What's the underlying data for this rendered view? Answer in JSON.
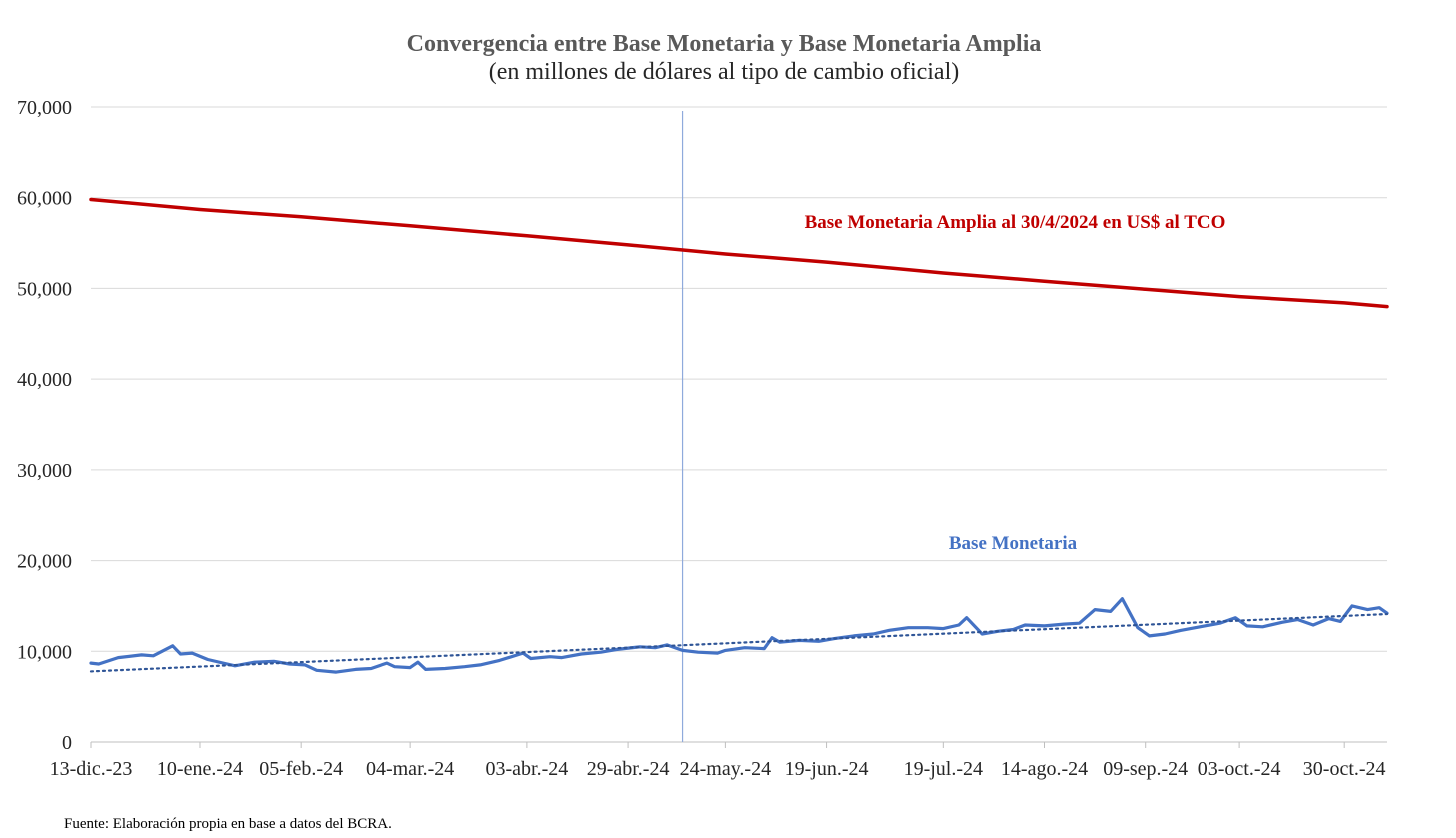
{
  "chart_data": {
    "type": "line",
    "title": "Convergencia entre Base Monetaria y Base Monetaria Amplia",
    "subtitle": "(en millones de dólares al tipo de cambio oficial)",
    "source": "Fuente: Elaboración propia en base a datos del BCRA.",
    "xlabel": "",
    "ylabel": "",
    "ylim": [
      0,
      70000
    ],
    "yticks": [
      "0",
      "10,000",
      "20,000",
      "30,000",
      "40,000",
      "50,000",
      "60,000",
      "70,000"
    ],
    "x_range": [
      "2023-12-13",
      "2024-11-10"
    ],
    "xticks": [
      {
        "date": "2023-12-13",
        "label": "13-dic.-23"
      },
      {
        "date": "2024-01-10",
        "label": "10-ene.-24"
      },
      {
        "date": "2024-02-05",
        "label": "05-feb.-24"
      },
      {
        "date": "2024-03-04",
        "label": "04-mar.-24"
      },
      {
        "date": "2024-04-03",
        "label": "03-abr.-24"
      },
      {
        "date": "2024-04-29",
        "label": "29-abr.-24"
      },
      {
        "date": "2024-05-24",
        "label": "24-may.-24"
      },
      {
        "date": "2024-06-19",
        "label": "19-jun.-24"
      },
      {
        "date": "2024-07-19",
        "label": "19-jul.-24"
      },
      {
        "date": "2024-08-14",
        "label": "14-ago.-24"
      },
      {
        "date": "2024-09-09",
        "label": "09-sep.-24"
      },
      {
        "date": "2024-10-03",
        "label": "03-oct.-24"
      },
      {
        "date": "2024-10-30",
        "label": "30-oct.-24"
      }
    ],
    "grid": true,
    "vertical_marker_date": "2024-05-13",
    "series": [
      {
        "name": "Base Monetaria Amplia al 30/4/2024 en US$ al TCO",
        "color": "#c00000",
        "points": [
          [
            "2023-12-13",
            59800
          ],
          [
            "2024-01-10",
            58700
          ],
          [
            "2024-02-05",
            57900
          ],
          [
            "2024-03-04",
            56900
          ],
          [
            "2024-04-03",
            55800
          ],
          [
            "2024-04-29",
            54800
          ],
          [
            "2024-05-24",
            53800
          ],
          [
            "2024-06-19",
            52900
          ],
          [
            "2024-07-19",
            51700
          ],
          [
            "2024-08-14",
            50800
          ],
          [
            "2024-09-09",
            49900
          ],
          [
            "2024-10-03",
            49100
          ],
          [
            "2024-10-30",
            48400
          ],
          [
            "2024-11-10",
            48000
          ]
        ]
      },
      {
        "name": "Base Monetaria",
        "color": "#4472c4",
        "points": [
          [
            "2023-12-13",
            8700
          ],
          [
            "2023-12-15",
            8600
          ],
          [
            "2023-12-20",
            9300
          ],
          [
            "2023-12-26",
            9600
          ],
          [
            "2023-12-29",
            9500
          ],
          [
            "2024-01-03",
            10600
          ],
          [
            "2024-01-05",
            9700
          ],
          [
            "2024-01-08",
            9800
          ],
          [
            "2024-01-12",
            9100
          ],
          [
            "2024-01-17",
            8600
          ],
          [
            "2024-01-19",
            8400
          ],
          [
            "2024-01-24",
            8800
          ],
          [
            "2024-01-29",
            8900
          ],
          [
            "2024-02-02",
            8600
          ],
          [
            "2024-02-06",
            8500
          ],
          [
            "2024-02-09",
            7900
          ],
          [
            "2024-02-14",
            7700
          ],
          [
            "2024-02-19",
            8000
          ],
          [
            "2024-02-23",
            8100
          ],
          [
            "2024-02-27",
            8700
          ],
          [
            "2024-02-29",
            8300
          ],
          [
            "2024-03-04",
            8200
          ],
          [
            "2024-03-06",
            8800
          ],
          [
            "2024-03-08",
            8000
          ],
          [
            "2024-03-13",
            8100
          ],
          [
            "2024-03-18",
            8300
          ],
          [
            "2024-03-22",
            8500
          ],
          [
            "2024-03-27",
            9000
          ],
          [
            "2024-04-02",
            9800
          ],
          [
            "2024-04-04",
            9200
          ],
          [
            "2024-04-09",
            9400
          ],
          [
            "2024-04-12",
            9300
          ],
          [
            "2024-04-17",
            9700
          ],
          [
            "2024-04-22",
            9900
          ],
          [
            "2024-04-26",
            10200
          ],
          [
            "2024-05-02",
            10500
          ],
          [
            "2024-05-06",
            10400
          ],
          [
            "2024-05-09",
            10700
          ],
          [
            "2024-05-13",
            10100
          ],
          [
            "2024-05-17",
            9900
          ],
          [
            "2024-05-22",
            9800
          ],
          [
            "2024-05-24",
            10100
          ],
          [
            "2024-05-29",
            10400
          ],
          [
            "2024-06-03",
            10300
          ],
          [
            "2024-06-05",
            11500
          ],
          [
            "2024-06-07",
            11000
          ],
          [
            "2024-06-12",
            11200
          ],
          [
            "2024-06-17",
            11100
          ],
          [
            "2024-06-21",
            11400
          ],
          [
            "2024-06-26",
            11700
          ],
          [
            "2024-07-01",
            11900
          ],
          [
            "2024-07-05",
            12300
          ],
          [
            "2024-07-10",
            12600
          ],
          [
            "2024-07-15",
            12600
          ],
          [
            "2024-07-19",
            12500
          ],
          [
            "2024-07-23",
            12900
          ],
          [
            "2024-07-25",
            13700
          ],
          [
            "2024-07-29",
            11900
          ],
          [
            "2024-08-02",
            12200
          ],
          [
            "2024-08-06",
            12400
          ],
          [
            "2024-08-09",
            12900
          ],
          [
            "2024-08-14",
            12800
          ],
          [
            "2024-08-19",
            13000
          ],
          [
            "2024-08-23",
            13100
          ],
          [
            "2024-08-27",
            14600
          ],
          [
            "2024-08-31",
            14400
          ],
          [
            "2024-09-03",
            15800
          ],
          [
            "2024-09-07",
            12600
          ],
          [
            "2024-09-10",
            11700
          ],
          [
            "2024-09-14",
            11900
          ],
          [
            "2024-09-18",
            12300
          ],
          [
            "2024-09-23",
            12700
          ],
          [
            "2024-09-28",
            13100
          ],
          [
            "2024-10-02",
            13700
          ],
          [
            "2024-10-05",
            12800
          ],
          [
            "2024-10-09",
            12700
          ],
          [
            "2024-10-14",
            13200
          ],
          [
            "2024-10-18",
            13500
          ],
          [
            "2024-10-22",
            12900
          ],
          [
            "2024-10-26",
            13600
          ],
          [
            "2024-10-29",
            13300
          ],
          [
            "2024-11-01",
            15000
          ],
          [
            "2024-11-05",
            14600
          ],
          [
            "2024-11-08",
            14800
          ],
          [
            "2024-11-10",
            14200
          ]
        ]
      }
    ],
    "annotations": [
      {
        "text": "Base Monetaria Amplia al 30/4/2024 en US$ al TCO",
        "color": "#c00000"
      },
      {
        "text": "Base Monetaria",
        "color": "#4472c4"
      }
    ]
  }
}
